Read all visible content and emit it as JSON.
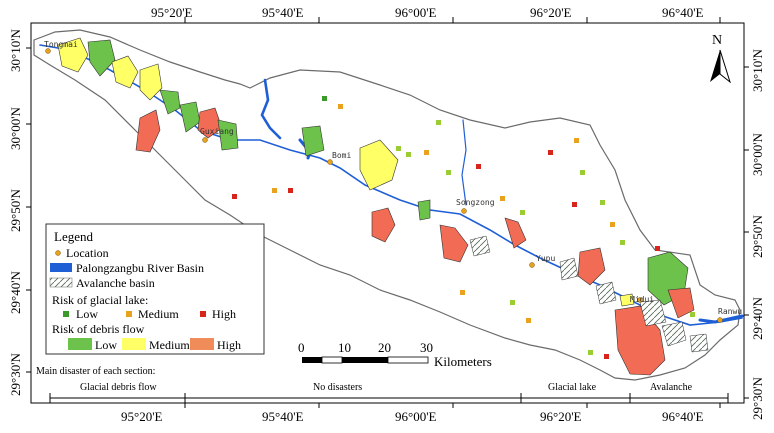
{
  "top_ticks": [
    "95°20'E",
    "95°40'E",
    "96°00'E",
    "96°20'E",
    "96°40'E"
  ],
  "bottom_ticks": [
    "95°20'E",
    "95°40'E",
    "96°00'E",
    "96°20'E",
    "96°40'E"
  ],
  "left_ticks": [
    "30°10'N",
    "30°00'N",
    "29°50'N",
    "29°40'N",
    "29°30'N"
  ],
  "right_ticks": [
    "30°10'N",
    "30°00'N",
    "29°50'N",
    "29°40'N",
    "29°30'N"
  ],
  "north_label": "N",
  "places": {
    "tongmai": "Tongmai",
    "guxiang": "Guxiang",
    "bomi": "Bomi",
    "songzong": "Songzong",
    "yupu": "Yupu",
    "midui": "Midui",
    "ranwu": "Ranwu"
  },
  "legend": {
    "title": "Legend",
    "location": "Location",
    "river_basin": "Palongzangbu River Basin",
    "avalanche_basin": "Avalanche basin",
    "glacial_lake_title": "Risk of glacial lake:",
    "glacial_lake_low": "Low",
    "glacial_lake_medium": "Medium",
    "glacial_lake_high": "High",
    "debris_flow_title": "Risk of debris flow",
    "debris_low": "Low",
    "debris_medium": "Medium",
    "debris_high": "High"
  },
  "colors": {
    "low": "#6cc24a",
    "medium": "#ffff66",
    "high": "#f26b55",
    "lake_low": "#3a9a2a",
    "lake_medium": "#e8a21e",
    "lake_high": "#d9241c",
    "river": "#1f5fd6",
    "location": "#e6a21e"
  },
  "scale_bar": {
    "labels": [
      "0",
      "10",
      "20",
      "30"
    ],
    "unit": "Kilometers"
  },
  "sections": {
    "title": "Main disaster of each section:",
    "labels": [
      "Glacial debris flow",
      "No disasters",
      "Glacial lake",
      "Avalanche"
    ]
  }
}
